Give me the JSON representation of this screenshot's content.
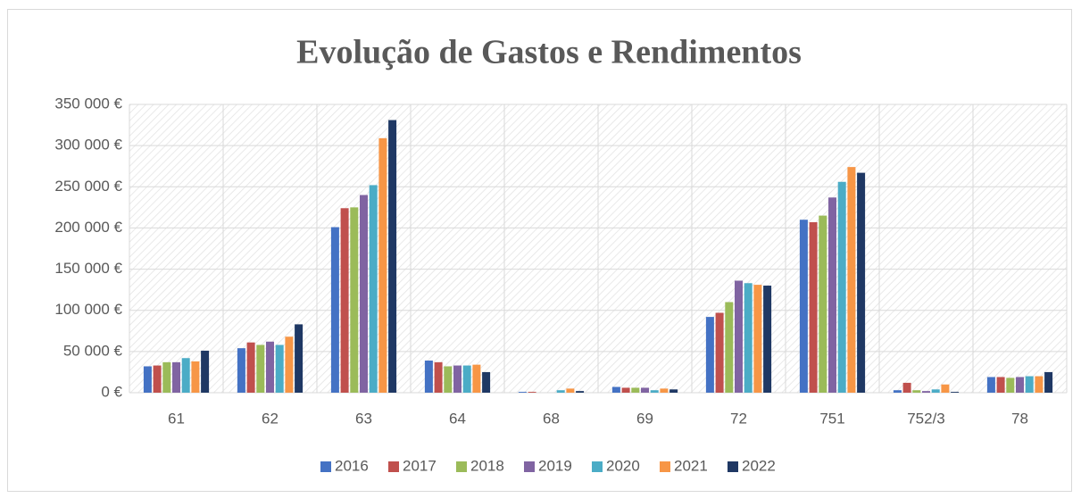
{
  "chart_data": {
    "type": "bar",
    "title": "Evolução de Gastos e Rendimentos",
    "categories": [
      "61",
      "62",
      "63",
      "64",
      "68",
      "69",
      "72",
      "751",
      "752/3",
      "78"
    ],
    "series": [
      {
        "name": "2016",
        "color": "#4472c4",
        "values": [
          32000,
          54000,
          201000,
          39000,
          1000,
          7000,
          92000,
          210000,
          3000,
          19000
        ]
      },
      {
        "name": "2017",
        "color": "#c0504d",
        "values": [
          33000,
          61000,
          224000,
          37000,
          1000,
          6000,
          97000,
          207000,
          12000,
          19000
        ]
      },
      {
        "name": "2018",
        "color": "#9bbb59",
        "values": [
          37000,
          58000,
          225000,
          32000,
          0,
          6000,
          110000,
          215000,
          3000,
          18000
        ]
      },
      {
        "name": "2019",
        "color": "#8064a2",
        "values": [
          37000,
          62000,
          240000,
          33000,
          0,
          6000,
          136000,
          237000,
          2000,
          19000
        ]
      },
      {
        "name": "2020",
        "color": "#4bacc6",
        "values": [
          42000,
          58000,
          252000,
          33000,
          3000,
          3000,
          133000,
          256000,
          4000,
          20000
        ]
      },
      {
        "name": "2021",
        "color": "#f79646",
        "values": [
          38000,
          68000,
          309000,
          34000,
          5000,
          5000,
          131000,
          274000,
          10000,
          20000
        ]
      },
      {
        "name": "2022",
        "color": "#1f3864",
        "values": [
          51000,
          83000,
          331000,
          25000,
          2000,
          4000,
          130000,
          267000,
          1000,
          25000
        ]
      }
    ],
    "ylim": [
      0,
      350000
    ],
    "yticks": [
      {
        "value": 0,
        "label": "0 €"
      },
      {
        "value": 50000,
        "label": "50 000 €"
      },
      {
        "value": 100000,
        "label": "100 000 €"
      },
      {
        "value": 150000,
        "label": "150 000 €"
      },
      {
        "value": 200000,
        "label": "200 000 €"
      },
      {
        "value": 250000,
        "label": "250 000 €"
      },
      {
        "value": 300000,
        "label": "300 000 €"
      },
      {
        "value": 350000,
        "label": "350 000 €"
      }
    ],
    "grid": true,
    "legend": "bottom"
  }
}
